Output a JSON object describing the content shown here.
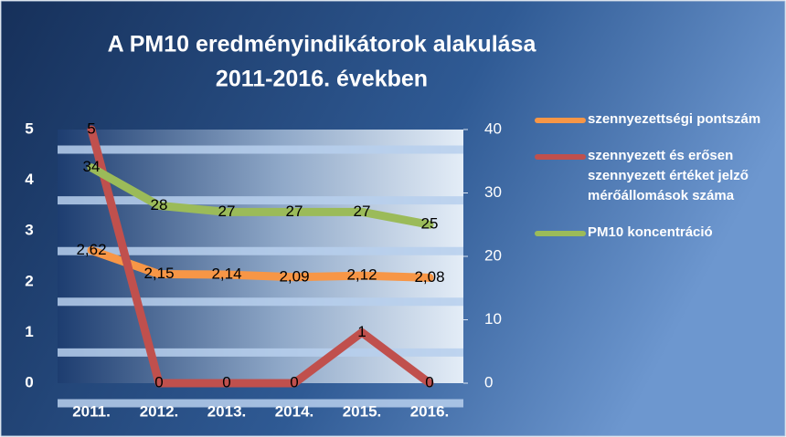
{
  "chart_data": {
    "type": "line",
    "title": [
      "A PM10 eredményindikátorok alakulása",
      "2011-2016. években"
    ],
    "categories": [
      "2011.",
      "2012.",
      "2013.",
      "2014.",
      "2015.",
      "2016."
    ],
    "series": [
      {
        "name": "szennyezettségi pontszám",
        "color": "#f79646",
        "values": [
          2.62,
          2.15,
          2.14,
          2.09,
          2.12,
          2.08
        ],
        "value_labels": [
          "2,62",
          "2,15",
          "2,14",
          "2,09",
          "2,12",
          "2,08"
        ]
      },
      {
        "name": "szennyezett és erősen szennyezett értéket jelző mérőállomások száma",
        "color": "#c0504d",
        "values": [
          5,
          0,
          0,
          0,
          1,
          0
        ]
      },
      {
        "name": "PM10 koncentráció",
        "color": "#9bbb59",
        "values": [
          34,
          28,
          27,
          27,
          27,
          25
        ],
        "axis": "y2"
      }
    ],
    "ylim": [
      0,
      5
    ],
    "yticks": [
      0,
      1,
      2,
      3,
      4,
      5
    ],
    "y2lim": [
      0,
      40
    ],
    "y2ticks": [
      0,
      10,
      20,
      30,
      40
    ],
    "grid": true,
    "legend": "right"
  }
}
